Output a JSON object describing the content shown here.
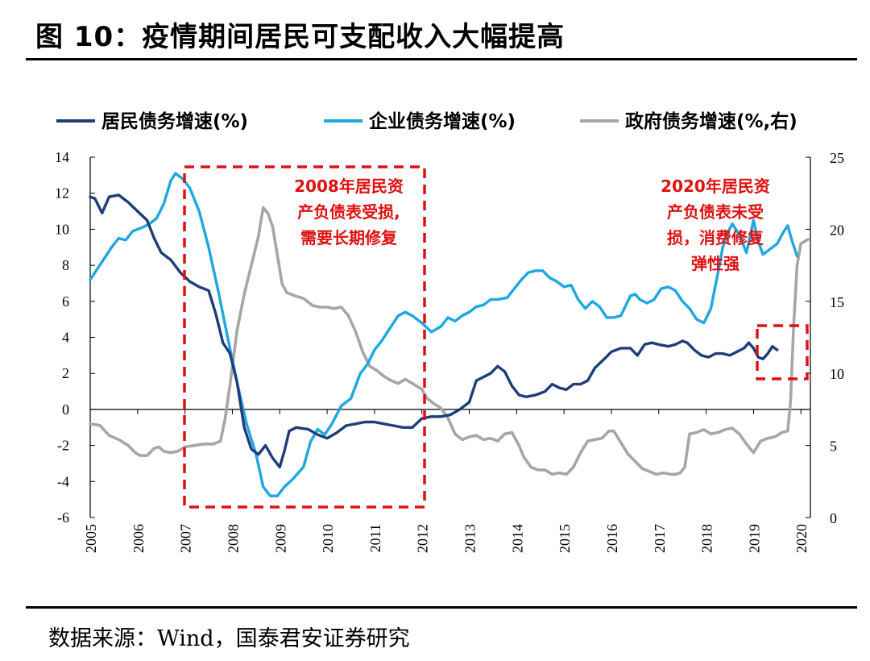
{
  "header": {
    "title": "图 10：疫情期间居民可支配收入大幅提高"
  },
  "footer": {
    "source": "数据来源：Wind，国泰君安证券研究"
  },
  "colors": {
    "household": "#1f3d7a",
    "corporate": "#1ea7e1",
    "government": "#a6a6a6",
    "annotation": "#e01010"
  },
  "chart_data": {
    "type": "line",
    "title": "",
    "x_label": "",
    "years": [
      "2005",
      "2006",
      "2007",
      "2008",
      "2009",
      "2010",
      "2011",
      "2012",
      "2013",
      "2014",
      "2015",
      "2016",
      "2017",
      "2018",
      "2019",
      "2020"
    ],
    "x_range": [
      2005.0,
      2020.2
    ],
    "y_left": {
      "range": [
        -6,
        14
      ],
      "ticks": [
        "14",
        "12",
        "10",
        "8",
        "6",
        "4",
        "2",
        "0",
        "-2",
        "-4",
        "-6"
      ]
    },
    "y_right": {
      "range": [
        0,
        25
      ],
      "ticks": [
        "25",
        "20",
        "15",
        "10",
        "5",
        "0"
      ]
    },
    "series": [
      {
        "key": "household",
        "name": "居民债务增速(%)",
        "axis": "left",
        "points": [
          [
            2005.0,
            11.8
          ],
          [
            2005.1,
            11.7
          ],
          [
            2005.25,
            10.9
          ],
          [
            2005.4,
            11.8
          ],
          [
            2005.6,
            11.9
          ],
          [
            2005.8,
            11.5
          ],
          [
            2006.0,
            11.0
          ],
          [
            2006.2,
            10.5
          ],
          [
            2006.35,
            9.5
          ],
          [
            2006.5,
            8.7
          ],
          [
            2006.7,
            8.3
          ],
          [
            2006.9,
            7.6
          ],
          [
            2007.1,
            7.1
          ],
          [
            2007.3,
            6.8
          ],
          [
            2007.5,
            6.6
          ],
          [
            2007.65,
            5.3
          ],
          [
            2007.8,
            3.7
          ],
          [
            2007.95,
            3.1
          ],
          [
            2008.1,
            1.5
          ],
          [
            2008.25,
            -1.0
          ],
          [
            2008.4,
            -2.2
          ],
          [
            2008.55,
            -2.5
          ],
          [
            2008.7,
            -2.0
          ],
          [
            2008.85,
            -2.7
          ],
          [
            2009.0,
            -3.2
          ],
          [
            2009.1,
            -2.3
          ],
          [
            2009.2,
            -1.2
          ],
          [
            2009.35,
            -1.0
          ],
          [
            2009.6,
            -1.1
          ],
          [
            2009.8,
            -1.4
          ],
          [
            2010.0,
            -1.6
          ],
          [
            2010.2,
            -1.3
          ],
          [
            2010.4,
            -0.9
          ],
          [
            2010.6,
            -0.8
          ],
          [
            2010.8,
            -0.7
          ],
          [
            2011.0,
            -0.7
          ],
          [
            2011.2,
            -0.8
          ],
          [
            2011.4,
            -0.9
          ],
          [
            2011.6,
            -1.0
          ],
          [
            2011.8,
            -1.0
          ],
          [
            2012.0,
            -0.5
          ],
          [
            2012.2,
            -0.4
          ],
          [
            2012.4,
            -0.4
          ],
          [
            2012.6,
            -0.3
          ],
          [
            2012.8,
            0.0
          ],
          [
            2013.0,
            0.4
          ],
          [
            2013.15,
            1.6
          ],
          [
            2013.3,
            1.8
          ],
          [
            2013.45,
            2.0
          ],
          [
            2013.6,
            2.4
          ],
          [
            2013.75,
            2.1
          ],
          [
            2013.9,
            1.3
          ],
          [
            2014.05,
            0.8
          ],
          [
            2014.2,
            0.7
          ],
          [
            2014.4,
            0.8
          ],
          [
            2014.6,
            1.0
          ],
          [
            2014.75,
            1.4
          ],
          [
            2014.9,
            1.2
          ],
          [
            2015.05,
            1.1
          ],
          [
            2015.2,
            1.4
          ],
          [
            2015.35,
            1.4
          ],
          [
            2015.5,
            1.6
          ],
          [
            2015.65,
            2.3
          ],
          [
            2015.85,
            2.8
          ],
          [
            2016.0,
            3.2
          ],
          [
            2016.2,
            3.4
          ],
          [
            2016.4,
            3.4
          ],
          [
            2016.55,
            3.0
          ],
          [
            2016.7,
            3.6
          ],
          [
            2016.85,
            3.7
          ],
          [
            2017.0,
            3.6
          ],
          [
            2017.2,
            3.5
          ],
          [
            2017.35,
            3.6
          ],
          [
            2017.5,
            3.8
          ],
          [
            2017.6,
            3.7
          ],
          [
            2017.75,
            3.3
          ],
          [
            2017.9,
            3.0
          ],
          [
            2018.05,
            2.9
          ],
          [
            2018.2,
            3.1
          ],
          [
            2018.35,
            3.1
          ],
          [
            2018.5,
            3.0
          ],
          [
            2018.65,
            3.2
          ],
          [
            2018.8,
            3.4
          ],
          [
            2018.9,
            3.7
          ],
          [
            2019.0,
            3.4
          ],
          [
            2019.1,
            2.9
          ],
          [
            2019.2,
            2.8
          ],
          [
            2019.3,
            3.1
          ],
          [
            2019.4,
            3.5
          ],
          [
            2019.5,
            3.3
          ]
        ]
      },
      {
        "key": "corporate",
        "name": "企业债务增速(%)",
        "axis": "left",
        "points": [
          [
            2005.0,
            7.2
          ],
          [
            2005.2,
            8.0
          ],
          [
            2005.45,
            9.0
          ],
          [
            2005.6,
            9.5
          ],
          [
            2005.75,
            9.4
          ],
          [
            2005.9,
            9.9
          ],
          [
            2006.1,
            10.1
          ],
          [
            2006.25,
            10.3
          ],
          [
            2006.4,
            10.6
          ],
          [
            2006.55,
            11.4
          ],
          [
            2006.7,
            12.7
          ],
          [
            2006.8,
            13.1
          ],
          [
            2006.95,
            12.8
          ],
          [
            2007.1,
            12.3
          ],
          [
            2007.3,
            11.0
          ],
          [
            2007.5,
            9.0
          ],
          [
            2007.7,
            6.6
          ],
          [
            2007.9,
            4.0
          ],
          [
            2008.1,
            1.5
          ],
          [
            2008.3,
            -0.8
          ],
          [
            2008.5,
            -2.5
          ],
          [
            2008.65,
            -4.3
          ],
          [
            2008.8,
            -4.8
          ],
          [
            2008.95,
            -4.8
          ],
          [
            2009.1,
            -4.3
          ],
          [
            2009.3,
            -3.8
          ],
          [
            2009.5,
            -3.2
          ],
          [
            2009.65,
            -1.8
          ],
          [
            2009.8,
            -1.1
          ],
          [
            2009.95,
            -1.4
          ],
          [
            2010.1,
            -0.8
          ],
          [
            2010.3,
            0.2
          ],
          [
            2010.5,
            0.6
          ],
          [
            2010.7,
            2.0
          ],
          [
            2010.85,
            2.5
          ],
          [
            2011.0,
            3.3
          ],
          [
            2011.15,
            3.8
          ],
          [
            2011.3,
            4.4
          ],
          [
            2011.5,
            5.2
          ],
          [
            2011.65,
            5.4
          ],
          [
            2011.8,
            5.2
          ],
          [
            2012.0,
            4.8
          ],
          [
            2012.2,
            4.3
          ],
          [
            2012.4,
            4.6
          ],
          [
            2012.55,
            5.1
          ],
          [
            2012.7,
            4.9
          ],
          [
            2012.85,
            5.2
          ],
          [
            2013.0,
            5.4
          ],
          [
            2013.15,
            5.7
          ],
          [
            2013.3,
            5.8
          ],
          [
            2013.45,
            6.1
          ],
          [
            2013.6,
            6.1
          ],
          [
            2013.8,
            6.2
          ],
          [
            2013.95,
            6.7
          ],
          [
            2014.1,
            7.2
          ],
          [
            2014.25,
            7.6
          ],
          [
            2014.4,
            7.7
          ],
          [
            2014.55,
            7.7
          ],
          [
            2014.7,
            7.3
          ],
          [
            2014.85,
            7.1
          ],
          [
            2015.0,
            6.8
          ],
          [
            2015.15,
            6.9
          ],
          [
            2015.3,
            6.1
          ],
          [
            2015.45,
            5.6
          ],
          [
            2015.6,
            6.0
          ],
          [
            2015.75,
            5.7
          ],
          [
            2015.9,
            5.1
          ],
          [
            2016.05,
            5.1
          ],
          [
            2016.2,
            5.2
          ],
          [
            2016.4,
            6.3
          ],
          [
            2016.5,
            6.4
          ],
          [
            2016.6,
            6.1
          ],
          [
            2016.75,
            5.9
          ],
          [
            2016.9,
            6.1
          ],
          [
            2017.05,
            6.7
          ],
          [
            2017.2,
            6.8
          ],
          [
            2017.35,
            6.6
          ],
          [
            2017.5,
            6.0
          ],
          [
            2017.65,
            5.6
          ],
          [
            2017.8,
            5.0
          ],
          [
            2017.95,
            4.8
          ],
          [
            2018.1,
            5.6
          ],
          [
            2018.25,
            7.6
          ],
          [
            2018.35,
            9.0
          ],
          [
            2018.45,
            9.8
          ],
          [
            2018.55,
            10.3
          ],
          [
            2018.7,
            9.7
          ],
          [
            2018.85,
            8.7
          ],
          [
            2019.0,
            10.5
          ],
          [
            2019.1,
            9.3
          ],
          [
            2019.2,
            8.6
          ],
          [
            2019.35,
            8.9
          ],
          [
            2019.5,
            9.2
          ],
          [
            2019.62,
            9.8
          ],
          [
            2019.72,
            10.2
          ],
          [
            2019.82,
            9.3
          ],
          [
            2019.92,
            8.5
          ]
        ]
      },
      {
        "key": "government",
        "name": "政府债务增速(%,右)",
        "axis": "right",
        "points": [
          [
            2005.0,
            6.5
          ],
          [
            2005.2,
            6.4
          ],
          [
            2005.4,
            5.7
          ],
          [
            2005.6,
            5.4
          ],
          [
            2005.8,
            5.0
          ],
          [
            2005.95,
            4.5
          ],
          [
            2006.05,
            4.3
          ],
          [
            2006.2,
            4.3
          ],
          [
            2006.35,
            4.8
          ],
          [
            2006.45,
            4.9
          ],
          [
            2006.55,
            4.6
          ],
          [
            2006.7,
            4.5
          ],
          [
            2006.85,
            4.6
          ],
          [
            2007.0,
            4.9
          ],
          [
            2007.2,
            5.0
          ],
          [
            2007.4,
            5.1
          ],
          [
            2007.6,
            5.1
          ],
          [
            2007.75,
            5.3
          ],
          [
            2007.85,
            6.9
          ],
          [
            2007.95,
            9.2
          ],
          [
            2008.1,
            13.0
          ],
          [
            2008.25,
            15.5
          ],
          [
            2008.4,
            17.5
          ],
          [
            2008.55,
            19.5
          ],
          [
            2008.65,
            21.5
          ],
          [
            2008.75,
            21.1
          ],
          [
            2008.85,
            20.2
          ],
          [
            2008.95,
            18.2
          ],
          [
            2009.05,
            16.2
          ],
          [
            2009.15,
            15.6
          ],
          [
            2009.3,
            15.4
          ],
          [
            2009.5,
            15.2
          ],
          [
            2009.7,
            14.7
          ],
          [
            2009.85,
            14.6
          ],
          [
            2010.0,
            14.6
          ],
          [
            2010.15,
            14.5
          ],
          [
            2010.3,
            14.6
          ],
          [
            2010.45,
            14.0
          ],
          [
            2010.6,
            12.9
          ],
          [
            2010.75,
            11.5
          ],
          [
            2010.9,
            10.5
          ],
          [
            2011.05,
            10.2
          ],
          [
            2011.2,
            9.8
          ],
          [
            2011.35,
            9.5
          ],
          [
            2011.5,
            9.3
          ],
          [
            2011.65,
            9.6
          ],
          [
            2011.8,
            9.3
          ],
          [
            2012.0,
            8.9
          ],
          [
            2012.1,
            8.3
          ],
          [
            2012.25,
            7.9
          ],
          [
            2012.4,
            7.6
          ],
          [
            2012.55,
            6.9
          ],
          [
            2012.7,
            5.8
          ],
          [
            2012.85,
            5.4
          ],
          [
            2013.0,
            5.6
          ],
          [
            2013.15,
            5.7
          ],
          [
            2013.3,
            5.4
          ],
          [
            2013.45,
            5.5
          ],
          [
            2013.6,
            5.3
          ],
          [
            2013.75,
            5.8
          ],
          [
            2013.9,
            5.9
          ],
          [
            2014.05,
            5.0
          ],
          [
            2014.15,
            4.2
          ],
          [
            2014.3,
            3.5
          ],
          [
            2014.45,
            3.3
          ],
          [
            2014.6,
            3.3
          ],
          [
            2014.75,
            3.0
          ],
          [
            2014.9,
            3.1
          ],
          [
            2015.05,
            3.0
          ],
          [
            2015.2,
            3.5
          ],
          [
            2015.35,
            4.5
          ],
          [
            2015.5,
            5.3
          ],
          [
            2015.65,
            5.4
          ],
          [
            2015.8,
            5.5
          ],
          [
            2015.95,
            6.0
          ],
          [
            2016.05,
            6.0
          ],
          [
            2016.2,
            5.2
          ],
          [
            2016.35,
            4.4
          ],
          [
            2016.5,
            3.9
          ],
          [
            2016.65,
            3.4
          ],
          [
            2016.8,
            3.2
          ],
          [
            2016.95,
            3.0
          ],
          [
            2017.1,
            3.1
          ],
          [
            2017.25,
            3.0
          ],
          [
            2017.35,
            3.0
          ],
          [
            2017.45,
            3.1
          ],
          [
            2017.55,
            3.5
          ],
          [
            2017.65,
            5.8
          ],
          [
            2017.8,
            5.9
          ],
          [
            2017.95,
            6.1
          ],
          [
            2018.1,
            5.8
          ],
          [
            2018.25,
            5.9
          ],
          [
            2018.4,
            6.1
          ],
          [
            2018.55,
            6.2
          ],
          [
            2018.7,
            5.8
          ],
          [
            2018.85,
            5.1
          ],
          [
            2019.0,
            4.5
          ],
          [
            2019.15,
            5.3
          ],
          [
            2019.3,
            5.5
          ],
          [
            2019.45,
            5.6
          ],
          [
            2019.6,
            5.9
          ],
          [
            2019.72,
            6.0
          ],
          [
            2019.78,
            8.0
          ],
          [
            2019.85,
            13.5
          ],
          [
            2019.92,
            17.5
          ],
          [
            2020.0,
            19.0
          ],
          [
            2020.15,
            19.3
          ]
        ]
      }
    ],
    "annotations": [
      {
        "lines": [
          "2008年居民资",
          "产负债表受损,",
          "需要长期修复"
        ]
      },
      {
        "lines": [
          "2020年居民资",
          "产负债表未受",
          "损，消费修复",
          "弹性强"
        ]
      }
    ]
  }
}
